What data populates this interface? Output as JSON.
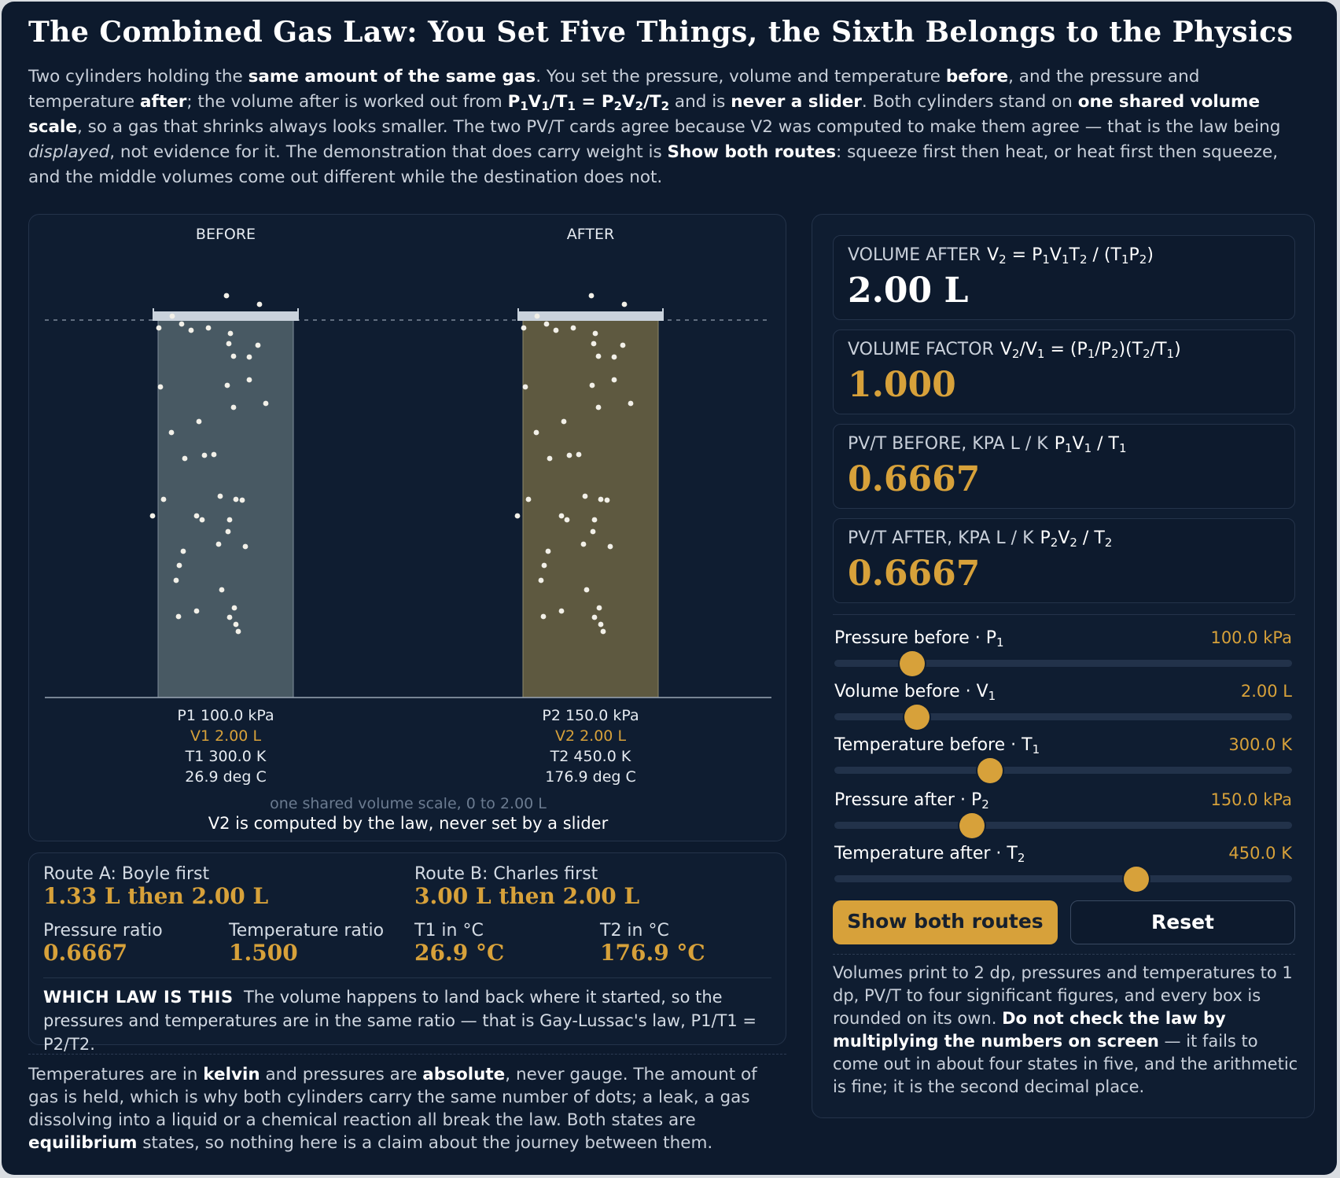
{
  "title": "The Combined Gas Law: You Set Five Things, the Sixth Belongs to the Physics",
  "intro": {
    "t1": "Two cylinders holding the ",
    "b1": "same amount of the same gas",
    "t2": ". You set the pressure, volume and temperature ",
    "b2": "before",
    "t3": ", and the pressure and temperature ",
    "b3": "after",
    "t4": "; the volume after is worked out from ",
    "formula_b": "P1V1/T1 = P2V2/T2",
    "t5": " and is ",
    "b4": "never a slider",
    "t6": ". Both cylinders stand on ",
    "b5": "one shared volume scale",
    "t7": ", so a gas that shrinks always looks smaller. The two PV/T cards agree because V2 was computed to make them agree — that is the law being ",
    "i1": "displayed",
    "t8": ", not evidence for it. The demonstration that does carry weight is ",
    "b6": "Show both routes",
    "t9": ": squeeze first then heat, or heat first then squeeze, and the middle volumes come out different while the destination does not."
  },
  "stage": {
    "before_label": "BEFORE",
    "after_label": "AFTER",
    "before": {
      "p": "P1 100.0 kPa",
      "v": "V1 2.00 L",
      "t": "T1 300.0 K",
      "c": "26.9 deg C",
      "fill": "#485963"
    },
    "after": {
      "p": "P2 150.0 kPa",
      "v": "V2 2.00 L",
      "t": "T2 450.0 K",
      "c": "176.9 deg C",
      "fill": "#5e5940"
    },
    "scale_caption": "one shared volume scale, 0 to 2.00 L",
    "main_caption": "V2 is computed by the law, never set by a slider"
  },
  "routes": {
    "a_label": "Route A: Boyle first",
    "a_value": "1.33 L then 2.00 L",
    "b_label": "Route B: Charles first",
    "b_value": "3.00 L then 2.00 L",
    "pressure_ratio_label": "Pressure ratio",
    "pressure_ratio": "0.6667",
    "temperature_ratio_label": "Temperature ratio",
    "temperature_ratio": "1.500",
    "t1c_label": "T1 in °C",
    "t1c": "26.9 °C",
    "t2c_label": "T2 in °C",
    "t2c": "176.9 °C",
    "law_title": "WHICH LAW IS THIS",
    "law_text": "The volume happens to land back where it started, so the pressures and temperatures are in the same ratio — that is Gay-Lussac's law, P1/T1 = P2/T2."
  },
  "footer": {
    "t1": "Temperatures are in ",
    "b1": "kelvin",
    "t2": " and pressures are ",
    "b2": "absolute",
    "t3": ", never gauge. The amount of gas is held, which is why both cylinders carry the same number of dots; a leak, a gas dissolving into a liquid or a chemical reaction all break the law. Both states are ",
    "b3": "equilibrium",
    "t4": " states, so nothing here is a claim about the journey between them."
  },
  "cards": {
    "vol_after_label": "VOLUME AFTER",
    "vol_after_formula": "V2 = P1V1T2 / (T1P2)",
    "vol_after_value": "2.00 L",
    "vol_factor_label": "VOLUME FACTOR",
    "vol_factor_formula": "V2/V1 = (P1/P2)(T2/T1)",
    "vol_factor_value": "1.000",
    "pvt_before_label": "PV/T BEFORE, KPA L / K",
    "pvt_before_formula": "P1V1 / T1",
    "pvt_before_value": "0.6667",
    "pvt_after_label": "PV/T AFTER, KPA L / K",
    "pvt_after_formula": "P2V2 / T2",
    "pvt_after_value": "0.6667"
  },
  "sliders": [
    {
      "name": "Pressure before · P1",
      "value": "100.0 kPa",
      "fraction": 0.17
    },
    {
      "name": "Volume before · V1",
      "value": "2.00 L",
      "fraction": 0.18
    },
    {
      "name": "Temperature before · T1",
      "value": "300.0 K",
      "fraction": 0.34
    },
    {
      "name": "Pressure after · P2",
      "value": "150.0 kPa",
      "fraction": 0.3
    },
    {
      "name": "Temperature after · T2",
      "value": "450.0 K",
      "fraction": 0.66
    }
  ],
  "buttons": {
    "show_routes": "Show both routes",
    "reset": "Reset"
  },
  "note": {
    "t1": "Volumes print to 2 dp, pressures and temperatures to 1 dp, PV/T to four significant figures, and every box is rounded on its own. ",
    "b1": "Do not check the law by multiplying the numbers on screen",
    "t2": " — it fails to come out in about four states in five, and the arithmetic is fine; it is the second decimal place."
  },
  "colors": {
    "accent": "#d7a13a",
    "background": "#0d1a2d",
    "panel": "#0f1d31"
  }
}
